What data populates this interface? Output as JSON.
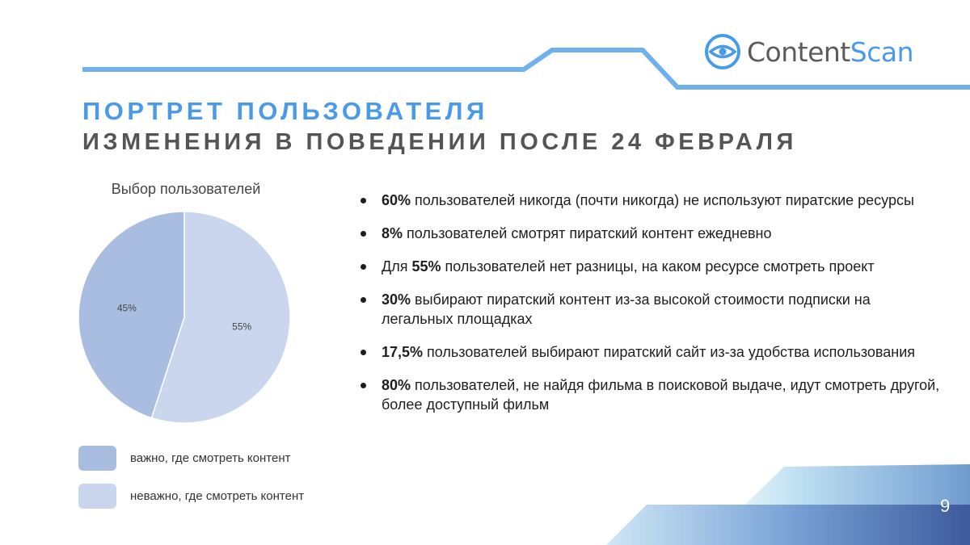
{
  "logo": {
    "part1": "Content",
    "part2": "Scan"
  },
  "header": {
    "title": "ПОРТРЕТ ПОЛЬЗОВАТЕЛЯ",
    "subtitle": "ИЗМЕНЕНИЯ В ПОВЕДЕНИИ ПОСЛЕ 24 ФЕВРАЛЯ"
  },
  "colors": {
    "accent": "#4a9ae8",
    "slice_important": "#a9bde0",
    "slice_unimportant": "#c9d6ed"
  },
  "chart_data": {
    "type": "pie",
    "title": "Выбор пользователей",
    "slices": [
      {
        "label": "важно, где смотреть контент",
        "value": 45,
        "display": "45%",
        "color": "#a9bde0"
      },
      {
        "label": "неважно, где смотреть контент",
        "value": 55,
        "display": "55%",
        "color": "#c9d6ed"
      }
    ],
    "legend_position": "bottom-left"
  },
  "bullets": [
    {
      "bold": "60%",
      "text": " пользователей никогда (почти никогда) не используют пиратские ресурсы",
      "prefix": ""
    },
    {
      "bold": "8%",
      "text": " пользователей смотрят пиратский контент ежедневно",
      "prefix": ""
    },
    {
      "bold": "55%",
      "text": " пользователей нет разницы, на каком ресурсе смотреть проект",
      "prefix": "Для "
    },
    {
      "bold": "30%",
      "text": " выбирают пиратский контент из-за высокой стоимости подписки на легальных площадках",
      "prefix": ""
    },
    {
      "bold": "17,5%",
      "text": " пользователей выбирают пиратский сайт из-за удобства использования",
      "prefix": ""
    },
    {
      "bold": "80%",
      "text": " пользователей, не найдя фильма в поисковой выдаче, идут смотреть другой, более доступный фильм",
      "prefix": ""
    }
  ],
  "page_number": "9"
}
